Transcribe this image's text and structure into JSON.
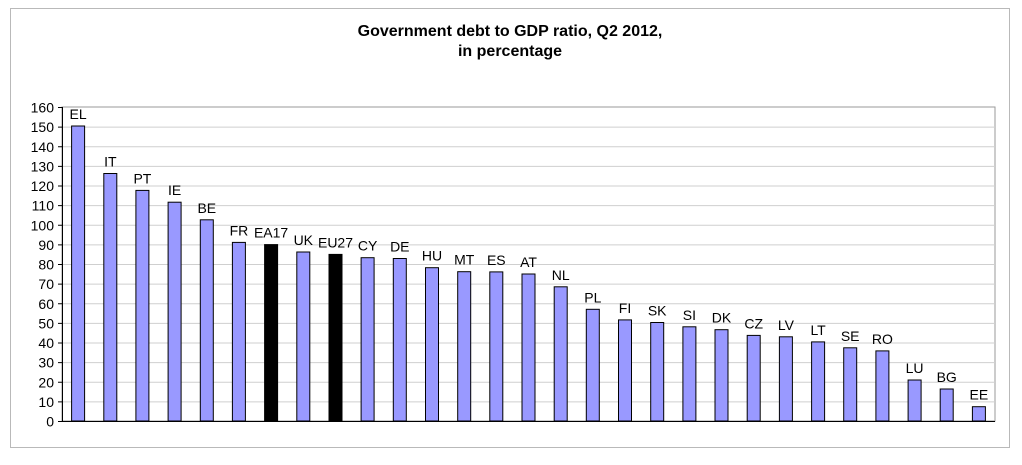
{
  "chart_data": {
    "type": "bar",
    "title": "Government debt to GDP ratio, Q2 2012,",
    "subtitle": "in percentage",
    "categories": [
      "EL",
      "IT",
      "PT",
      "IE",
      "BE",
      "FR",
      "EA17",
      "UK",
      "EU27",
      "CY",
      "DE",
      "HU",
      "MT",
      "ES",
      "AT",
      "NL",
      "PL",
      "FI",
      "SK",
      "SI",
      "DK",
      "CZ",
      "LV",
      "LT",
      "SE",
      "RO",
      "LU",
      "BG",
      "EE"
    ],
    "values": [
      150.3,
      126.1,
      117.5,
      111.5,
      102.5,
      91.0,
      89.9,
      86.1,
      84.9,
      83.2,
      82.8,
      78.1,
      76.1,
      76.0,
      74.9,
      68.4,
      56.9,
      51.5,
      50.2,
      48.0,
      46.5,
      43.6,
      42.9,
      40.3,
      37.3,
      35.7,
      20.9,
      16.3,
      7.3
    ],
    "highlight_categories": [
      "EA17",
      "EU27"
    ],
    "ylim": [
      0,
      160
    ],
    "yticks": [
      0,
      10,
      20,
      30,
      40,
      50,
      60,
      70,
      80,
      90,
      100,
      110,
      120,
      130,
      140,
      150,
      160
    ],
    "grid": true,
    "colors": {
      "bar": "#9999ff",
      "highlight": "#000000",
      "bar_outline": "#000000",
      "grid": "#cfcfcf"
    },
    "xlabel": "",
    "ylabel": ""
  }
}
